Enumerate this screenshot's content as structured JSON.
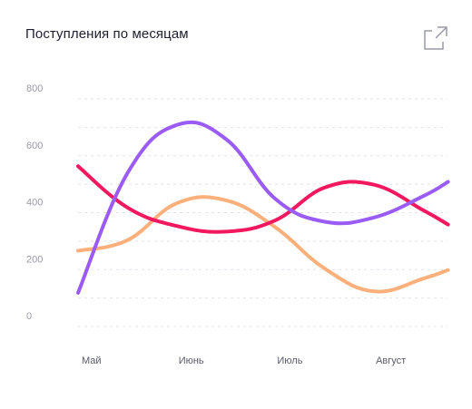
{
  "header": {
    "title": "Поступления по месяцам",
    "expand_icon": "external-link-icon"
  },
  "colors": {
    "grid": "#e2e2ea",
    "tick_text": "#9a9aaa",
    "purple": "#9b5cf6",
    "red": "#f2185f",
    "orange": "#fbb07c"
  },
  "chart_data": {
    "type": "line",
    "title": "Поступления по месяцам",
    "x": [
      0,
      0.5,
      1,
      1.5,
      2,
      2.5,
      3,
      3.5,
      3.75
    ],
    "categories": [
      "Май",
      "Июнь",
      "Июль",
      "Август"
    ],
    "y_ticks": [
      "0",
      "200",
      "400",
      "600",
      "800"
    ],
    "ylim": [
      -40,
      840
    ],
    "grid": true,
    "series": [
      {
        "color": "#9b5cf6",
        "values": [
          80,
          500,
          670,
          620,
          410,
          330,
          345,
          420,
          470
        ]
      },
      {
        "color": "#f2185f",
        "values": [
          525,
          380,
          315,
          295,
          335,
          450,
          460,
          370,
          320
        ]
      },
      {
        "color": "#fbb07c",
        "values": [
          228,
          265,
          395,
          405,
          310,
          165,
          85,
          130,
          160
        ]
      }
    ]
  }
}
